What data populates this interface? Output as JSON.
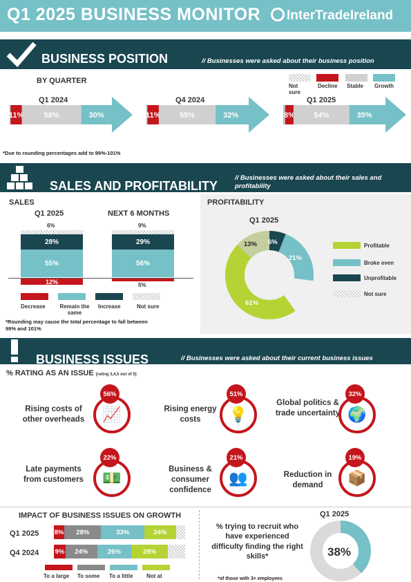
{
  "header": {
    "title": "Q1 2025 BUSINESS MONITOR",
    "logo": "InterTradeIreland"
  },
  "business_position": {
    "title": "BUSINESS POSITION",
    "subtitle": "// Businesses were asked about their business position",
    "by_quarter": "BY QUARTER",
    "legend": [
      "Not sure",
      "Decline",
      "Stable",
      "Growth"
    ],
    "note": "*Due to rounding percentages add to 99%-101%",
    "quarters": [
      {
        "label": "Q1 2024",
        "decline": "11%",
        "stable": "58%",
        "growth": "30%",
        "values": [
          1,
          11,
          58,
          30
        ]
      },
      {
        "label": "Q4 2024",
        "decline": "11%",
        "stable": "55%",
        "growth": "32%",
        "values": [
          1,
          11,
          55,
          32
        ]
      },
      {
        "label": "Q1 2025",
        "decline": "8%",
        "stable": "54%",
        "growth": "35%",
        "values": [
          2,
          8,
          54,
          35
        ]
      }
    ]
  },
  "sales_profit": {
    "title": "SALES AND PROFITABILITY",
    "subtitle": "// Businesses were asked about their sales and profitability",
    "sales_label": "SALES",
    "col1": "Q1 2025",
    "col2": "NEXT 6 MONTHS",
    "q1": {
      "not_sure": "6%",
      "increase": "28%",
      "same": "55%",
      "decrease": "12%"
    },
    "next6": {
      "not_sure": "9%",
      "increase": "29%",
      "same": "56%",
      "decrease": "5%"
    },
    "legend": [
      "Decrease",
      "Remain the same",
      "Increase",
      "Not sure"
    ],
    "note": "*Rounding may cause the total percentage to fall between 99% and 101%",
    "profit_label": "PROFITABILITY",
    "profit_quarter": "Q1 2025",
    "profit_legend": [
      "Profitable",
      "Broke even",
      "Unprofitable",
      "Not sure"
    ],
    "profit_values": {
      "profitable": "61%",
      "broke_even": "21%",
      "unprofitable": "6%",
      "not_sure": "13%"
    }
  },
  "issues": {
    "title": "BUSINESS ISSUES",
    "subtitle": "// Businesses were asked about their current business issues",
    "rating_label": "% RATING AS AN ISSUE",
    "rating_note": "(rating 3,4,5 out of 5)",
    "items": [
      {
        "text": "Rising costs of other overheads",
        "pct": "56%",
        "icon": "chart-up-icon"
      },
      {
        "text": "Rising energy costs",
        "pct": "51%",
        "icon": "lightbulb-icon"
      },
      {
        "text": "Global politics & trade uncertainty",
        "pct": "32%",
        "icon": "globe-icon"
      },
      {
        "text": "Late payments from customers",
        "pct": "22%",
        "icon": "cash-icon"
      },
      {
        "text": "Business & consumer confidence",
        "pct": "21%",
        "icon": "people-icon"
      },
      {
        "text": "Reduction in demand",
        "pct": "19%",
        "icon": "boxes-icon"
      }
    ]
  },
  "impact": {
    "title": "IMPACT OF BUSINESS ISSUES ON GROWTH",
    "rows": [
      {
        "label": "Q1 2025",
        "large": "8%",
        "some": "28%",
        "little": "33%",
        "notatall": "24%",
        "values": [
          8,
          28,
          33,
          24,
          7
        ]
      },
      {
        "label": "Q4 2024",
        "large": "9%",
        "some": "24%",
        "little": "26%",
        "notatall": "28%",
        "values": [
          9,
          24,
          26,
          28,
          13
        ]
      }
    ],
    "legend": [
      "To a large",
      "To some",
      "To a little",
      "Not at"
    ]
  },
  "recruit": {
    "text": "% trying to recruit who have experienced difficulty finding the right skills*",
    "quarter": "Q1 2025",
    "value": "38%",
    "fraction": 0.38,
    "note": "*of those with 3+ employees"
  },
  "colors": {
    "teal": "#76c0c7",
    "dark": "#1a4650",
    "red": "#c4161c",
    "grey": "#d0d0d0",
    "green": "#b5d334",
    "midgrey": "#8a8a8a"
  }
}
